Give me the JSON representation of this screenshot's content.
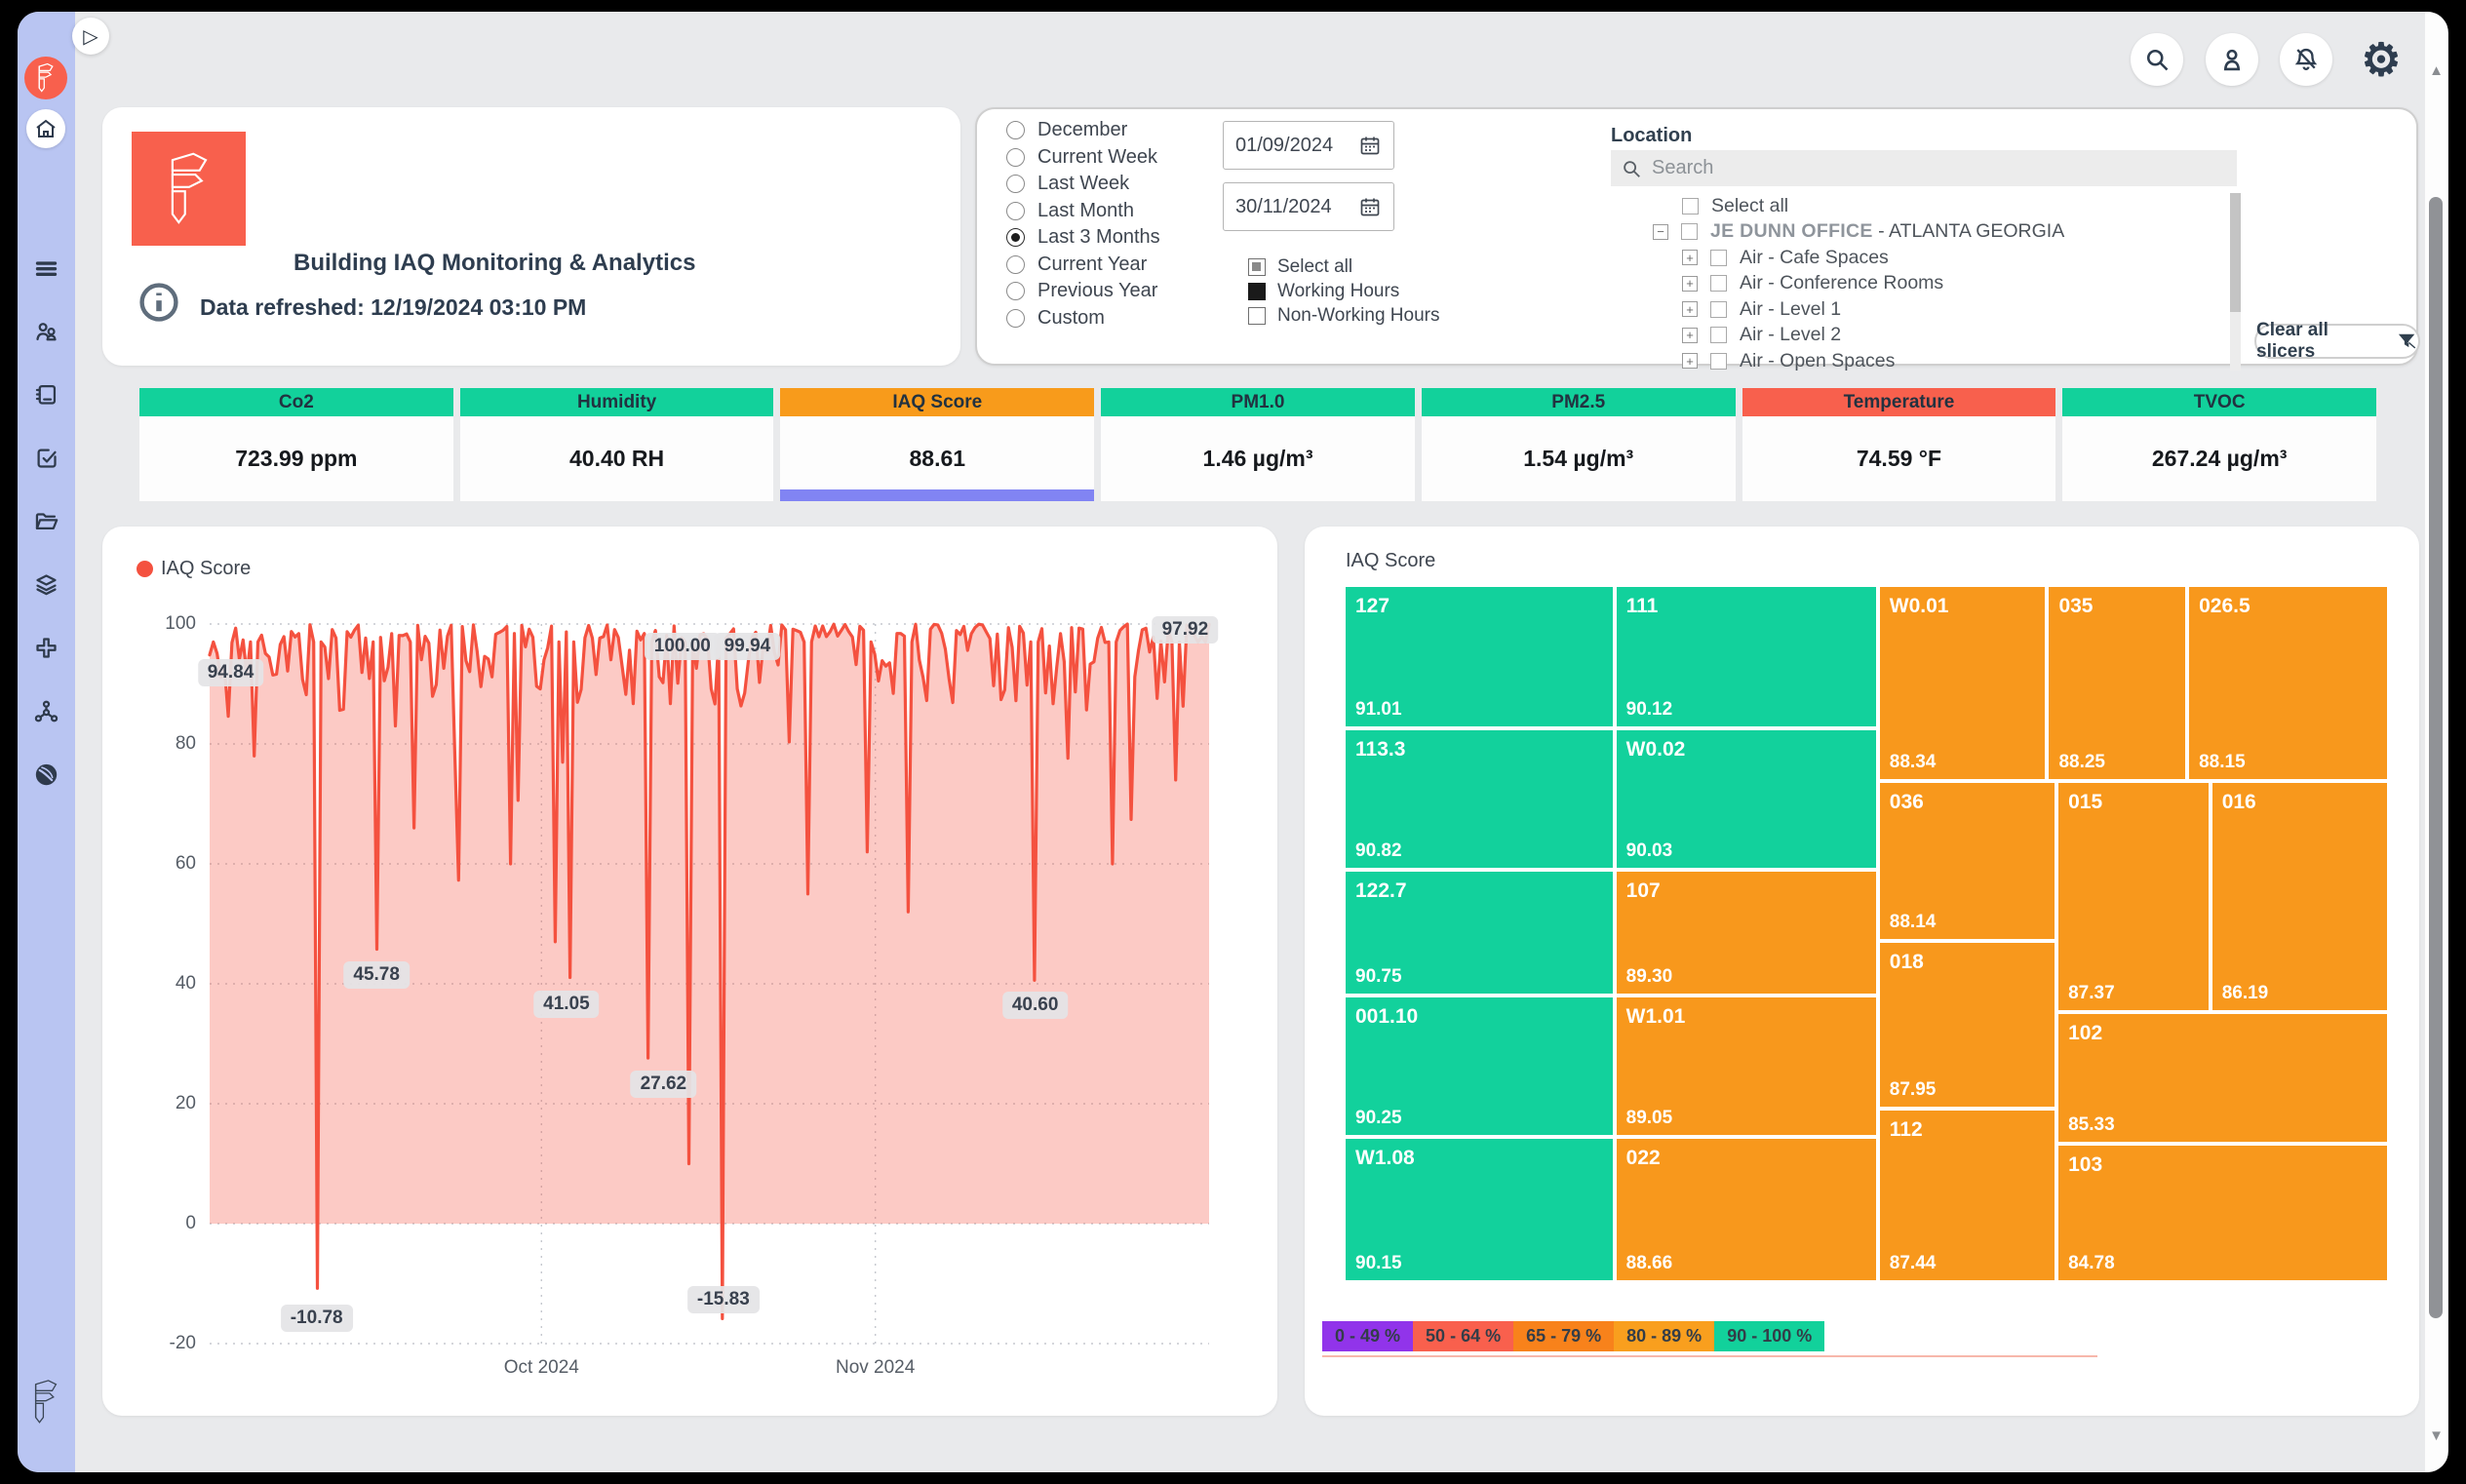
{
  "header": {
    "title": "Building IAQ Monitoring & Analytics",
    "refreshed": "Data refreshed: 12/19/2024 03:10 PM"
  },
  "sidebar": {
    "play_icon": "▷",
    "icons": [
      {
        "name": "menu-stack-icon"
      },
      {
        "name": "users-icon"
      },
      {
        "name": "notebook-icon"
      },
      {
        "name": "form-check-icon"
      },
      {
        "name": "folder-icon"
      },
      {
        "name": "layers-icon"
      },
      {
        "name": "plus-cross-icon"
      },
      {
        "name": "network-icon"
      },
      {
        "name": "sphere-icon"
      }
    ]
  },
  "topbar": {
    "buttons": [
      {
        "name": "search"
      },
      {
        "name": "profile"
      },
      {
        "name": "notifications-off"
      },
      {
        "name": "settings"
      }
    ]
  },
  "filters": {
    "periods": [
      {
        "label": "December",
        "selected": false
      },
      {
        "label": "Current Week",
        "selected": false
      },
      {
        "label": "Last Week",
        "selected": false
      },
      {
        "label": "Last Month",
        "selected": false
      },
      {
        "label": "Last 3 Months",
        "selected": true
      },
      {
        "label": "Current Year",
        "selected": false
      },
      {
        "label": "Previous Year",
        "selected": false
      },
      {
        "label": "Custom",
        "selected": false
      }
    ],
    "date_from": {
      "value": "01/09/2024"
    },
    "date_to": {
      "value": "30/11/2024"
    },
    "hours": [
      {
        "label": "Select all",
        "state": "partial"
      },
      {
        "label": "Working Hours",
        "state": "checked"
      },
      {
        "label": "Non-Working Hours",
        "state": "unchecked"
      }
    ],
    "location": {
      "label": "Location",
      "search_placeholder": "Search",
      "tree": [
        {
          "label": "Select all",
          "level": 0,
          "expander": ""
        },
        {
          "label": "JE DUNN OFFICE",
          "label_rest": " - ATLANTA GEORGIA",
          "bold": true,
          "level": 1,
          "expander": "−"
        },
        {
          "label": "Air - Cafe Spaces",
          "level": 2,
          "expander": "+"
        },
        {
          "label": "Air - Conference Rooms",
          "level": 2,
          "expander": "+"
        },
        {
          "label": "Air - Level 1",
          "level": 2,
          "expander": "+"
        },
        {
          "label": "Air - Level 2",
          "level": 2,
          "expander": "+"
        },
        {
          "label": "Air - Open Spaces",
          "level": 2,
          "expander": "+"
        }
      ],
      "clear_button": "Clear all slicers"
    }
  },
  "kpis": [
    {
      "label": "Co2",
      "value": "723.99 ppm",
      "header_color": "#12d19b",
      "selected": false
    },
    {
      "label": "Humidity",
      "value": "40.40 RH",
      "header_color": "#12d19b",
      "selected": false
    },
    {
      "label": "IAQ Score",
      "value": "88.61",
      "header_color": "#f89b1b",
      "selected": true,
      "selection_color": "#8184f3"
    },
    {
      "label": "PM1.0",
      "value": "1.46 µg/m³",
      "header_color": "#12d19b",
      "selected": false
    },
    {
      "label": "PM2.5",
      "value": "1.54 µg/m³",
      "header_color": "#12d19b",
      "selected": false
    },
    {
      "label": "Temperature",
      "value": "74.59 °F",
      "header_color": "#f8604d",
      "selected": false
    },
    {
      "label": "TVOC",
      "value": "267.24 µg/m³",
      "header_color": "#12d19b",
      "selected": false
    }
  ],
  "chart_data": [
    {
      "type": "area",
      "title": "IAQ Score",
      "legend": "IAQ Score",
      "line_color": "#f4513f",
      "fill_color": "rgba(244,81,63,0.30)",
      "ylim": [
        -20,
        100
      ],
      "baseline": 0,
      "grid": true,
      "y_ticks": [
        100,
        80,
        60,
        40,
        20,
        0,
        -20
      ],
      "x_ticks": [
        {
          "label": "Oct 2024",
          "x_frac": 0.332
        },
        {
          "label": "Nov 2024",
          "x_frac": 0.666
        }
      ],
      "labeled_points": [
        {
          "text": "94.84",
          "x_pct": 2.1,
          "y_pct": 6.8
        },
        {
          "text": "100.00",
          "x_pct": 47.3,
          "y_pct": 3.1
        },
        {
          "text": "99.94",
          "x_pct": 53.8,
          "y_pct": 3.1
        },
        {
          "text": "97.92",
          "x_pct": 97.6,
          "y_pct": 0.8
        },
        {
          "text": "45.78",
          "x_pct": 16.7,
          "y_pct": 48.8
        },
        {
          "text": "41.05",
          "x_pct": 35.7,
          "y_pct": 52.8
        },
        {
          "text": "27.62",
          "x_pct": 45.4,
          "y_pct": 64.0
        },
        {
          "text": "40.60",
          "x_pct": 82.6,
          "y_pct": 53.0
        },
        {
          "text": "-10.78",
          "x_pct": 10.7,
          "y_pct": 96.5
        },
        {
          "text": "-15.83",
          "x_pct": 51.4,
          "y_pct": 93.9
        }
      ],
      "anchors": [
        [
          0.0,
          94.84
        ],
        [
          0.045,
          78
        ],
        [
          0.107,
          -10.78
        ],
        [
          0.168,
          45.78
        ],
        [
          0.205,
          66
        ],
        [
          0.3,
          60
        ],
        [
          0.345,
          47
        ],
        [
          0.362,
          41.05
        ],
        [
          0.44,
          27.62
        ],
        [
          0.478,
          10
        ],
        [
          0.513,
          -15.83
        ],
        [
          0.6,
          55
        ],
        [
          0.658,
          62
        ],
        [
          0.7,
          52
        ],
        [
          0.824,
          40.6
        ],
        [
          0.905,
          60
        ],
        [
          0.965,
          74
        ],
        [
          0.993,
          97.92
        ]
      ]
    },
    {
      "type": "treemap",
      "title": "IAQ Score",
      "tiles": [
        {
          "name": "127",
          "value": "91.01",
          "color": "#12d19c",
          "rect": {
            "x": 0,
            "y": 0,
            "w": 25.9,
            "h": 20.5
          }
        },
        {
          "name": "113.3",
          "value": "90.82",
          "color": "#12d19c",
          "rect": {
            "x": 0,
            "y": 20.5,
            "w": 25.9,
            "h": 20.3
          }
        },
        {
          "name": "122.7",
          "value": "90.75",
          "color": "#12d19c",
          "rect": {
            "x": 0,
            "y": 40.8,
            "w": 25.9,
            "h": 18.1
          }
        },
        {
          "name": "001.10",
          "value": "90.25",
          "color": "#12d19c",
          "rect": {
            "x": 0,
            "y": 58.9,
            "w": 25.9,
            "h": 20.3
          }
        },
        {
          "name": "W1.08",
          "value": "90.15",
          "color": "#12d19c",
          "rect": {
            "x": 0,
            "y": 79.2,
            "w": 25.9,
            "h": 20.8
          }
        },
        {
          "name": "111",
          "value": "90.12",
          "color": "#12d19c",
          "rect": {
            "x": 25.9,
            "y": 0,
            "w": 25.2,
            "h": 20.5
          }
        },
        {
          "name": "W0.02",
          "value": "90.03",
          "color": "#12d19c",
          "rect": {
            "x": 25.9,
            "y": 20.5,
            "w": 25.2,
            "h": 20.3
          }
        },
        {
          "name": "107",
          "value": "89.30",
          "color": "#f8981c",
          "rect": {
            "x": 25.9,
            "y": 40.8,
            "w": 25.2,
            "h": 18.1
          }
        },
        {
          "name": "W1.01",
          "value": "89.05",
          "color": "#f8981c",
          "rect": {
            "x": 25.9,
            "y": 58.9,
            "w": 25.2,
            "h": 20.3
          }
        },
        {
          "name": "022",
          "value": "88.66",
          "color": "#f8981c",
          "rect": {
            "x": 25.9,
            "y": 79.2,
            "w": 25.2,
            "h": 20.8
          }
        },
        {
          "name": "W0.01",
          "value": "88.34",
          "color": "#f8981c",
          "rect": {
            "x": 51.1,
            "y": 0,
            "w": 16.2,
            "h": 28.1
          }
        },
        {
          "name": "035",
          "value": "88.25",
          "color": "#f8981c",
          "rect": {
            "x": 67.3,
            "y": 0,
            "w": 13.4,
            "h": 28.1
          }
        },
        {
          "name": "026.5",
          "value": "88.15",
          "color": "#f8981c",
          "rect": {
            "x": 80.7,
            "y": 0,
            "w": 19.3,
            "h": 28.1
          }
        },
        {
          "name": "036",
          "value": "88.14",
          "color": "#f8981c",
          "rect": {
            "x": 51.1,
            "y": 28.1,
            "w": 17.1,
            "h": 23.0
          }
        },
        {
          "name": "018",
          "value": "87.95",
          "color": "#f8981c",
          "rect": {
            "x": 51.1,
            "y": 51.1,
            "w": 17.1,
            "h": 24.0
          }
        },
        {
          "name": "112",
          "value": "87.44",
          "color": "#f8981c",
          "rect": {
            "x": 51.1,
            "y": 75.1,
            "w": 17.1,
            "h": 24.9
          }
        },
        {
          "name": "015",
          "value": "87.37",
          "color": "#f8981c",
          "rect": {
            "x": 68.2,
            "y": 28.1,
            "w": 14.7,
            "h": 33.2
          }
        },
        {
          "name": "016",
          "value": "86.19",
          "color": "#f8981c",
          "rect": {
            "x": 82.9,
            "y": 28.1,
            "w": 17.1,
            "h": 33.2
          }
        },
        {
          "name": "102",
          "value": "85.33",
          "color": "#f8981c",
          "rect": {
            "x": 68.2,
            "y": 61.3,
            "w": 31.8,
            "h": 18.9
          }
        },
        {
          "name": "103",
          "value": "84.78",
          "color": "#f8981c",
          "rect": {
            "x": 68.2,
            "y": 80.2,
            "w": 31.8,
            "h": 19.8
          }
        }
      ],
      "legend": [
        {
          "label": "0 - 49 %",
          "color": "#9134ea"
        },
        {
          "label": "50 - 64 %",
          "color": "#f9604d"
        },
        {
          "label": "65 - 79 %",
          "color": "#f8821b"
        },
        {
          "label": "80 - 89 %",
          "color": "#f99f1e"
        },
        {
          "label": "90 - 100 %",
          "color": "#12d19b"
        }
      ]
    }
  ]
}
